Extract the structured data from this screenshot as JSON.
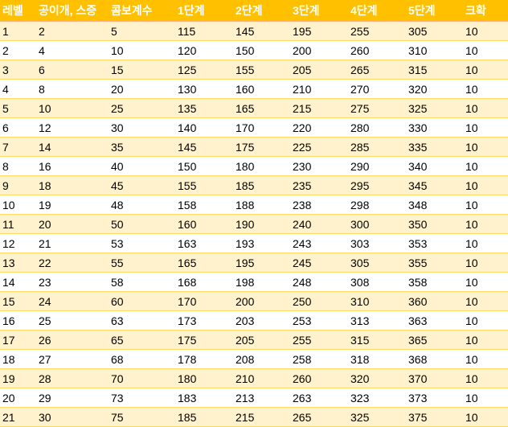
{
  "table": {
    "header": [
      "레벨",
      "공이개, 스증",
      "콤보계수",
      "1단계",
      "2단계",
      "3단계",
      "4단계",
      "5단계",
      "크확"
    ],
    "rows": [
      [
        1,
        2,
        5,
        115,
        145,
        195,
        255,
        305,
        10
      ],
      [
        2,
        4,
        10,
        120,
        150,
        200,
        260,
        310,
        10
      ],
      [
        3,
        6,
        15,
        125,
        155,
        205,
        265,
        315,
        10
      ],
      [
        4,
        8,
        20,
        130,
        160,
        210,
        270,
        320,
        10
      ],
      [
        5,
        10,
        25,
        135,
        165,
        215,
        275,
        325,
        10
      ],
      [
        6,
        12,
        30,
        140,
        170,
        220,
        280,
        330,
        10
      ],
      [
        7,
        14,
        35,
        145,
        175,
        225,
        285,
        335,
        10
      ],
      [
        8,
        16,
        40,
        150,
        180,
        230,
        290,
        340,
        10
      ],
      [
        9,
        18,
        45,
        155,
        185,
        235,
        295,
        345,
        10
      ],
      [
        10,
        19,
        48,
        158,
        188,
        238,
        298,
        348,
        10
      ],
      [
        11,
        20,
        50,
        160,
        190,
        240,
        300,
        350,
        10
      ],
      [
        12,
        21,
        53,
        163,
        193,
        243,
        303,
        353,
        10
      ],
      [
        13,
        22,
        55,
        165,
        195,
        245,
        305,
        355,
        10
      ],
      [
        14,
        23,
        58,
        168,
        198,
        248,
        308,
        358,
        10
      ],
      [
        15,
        24,
        60,
        170,
        200,
        250,
        310,
        360,
        10
      ],
      [
        16,
        25,
        63,
        173,
        203,
        253,
        313,
        363,
        10
      ],
      [
        17,
        26,
        65,
        175,
        205,
        255,
        315,
        365,
        10
      ],
      [
        18,
        27,
        68,
        178,
        208,
        258,
        318,
        368,
        10
      ],
      [
        19,
        28,
        70,
        180,
        210,
        260,
        320,
        370,
        10
      ],
      [
        20,
        29,
        73,
        183,
        213,
        263,
        323,
        373,
        10
      ],
      [
        21,
        30,
        75,
        185,
        215,
        265,
        325,
        375,
        10
      ]
    ]
  }
}
